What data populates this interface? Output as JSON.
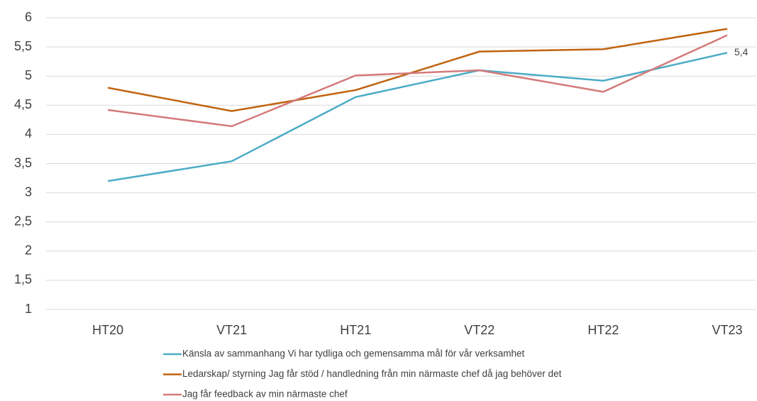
{
  "chart_data": {
    "type": "line",
    "categories": [
      "HT20",
      "VT21",
      "HT21",
      "VT22",
      "HT22",
      "VT23"
    ],
    "series": [
      {
        "name": "Känsla av sammanhang  Vi har tydliga och gemensamma mål för vår verksamhet",
        "color": "#4bacc6",
        "values": [
          3.2,
          3.54,
          4.64,
          5.1,
          4.92,
          5.4
        ],
        "value_labels": [
          null,
          null,
          null,
          null,
          null,
          "5,4"
        ]
      },
      {
        "name": "Ledarskap/ styrning  Jag får stöd / handledning från min närmaste chef  då jag behöver det",
        "color": "#c0630f",
        "values": [
          4.8,
          4.4,
          4.76,
          5.42,
          5.46,
          5.81
        ]
      },
      {
        "name": "Jag får feedback av min närmaste chef",
        "color": "#d47a7a",
        "values": [
          4.42,
          4.14,
          5.01,
          5.1,
          4.73,
          5.7
        ]
      }
    ],
    "ylim": [
      1,
      6
    ],
    "yticks": [
      1,
      {
        "value": 1.5,
        "label": "1,5"
      },
      2,
      {
        "value": 2.5,
        "label": "2,5"
      },
      3,
      {
        "value": 3.5,
        "label": "3,5"
      },
      4,
      {
        "value": 4.5,
        "label": "4,5"
      },
      5,
      {
        "value": 5.5,
        "label": "5,5"
      },
      6
    ],
    "grid": true
  }
}
